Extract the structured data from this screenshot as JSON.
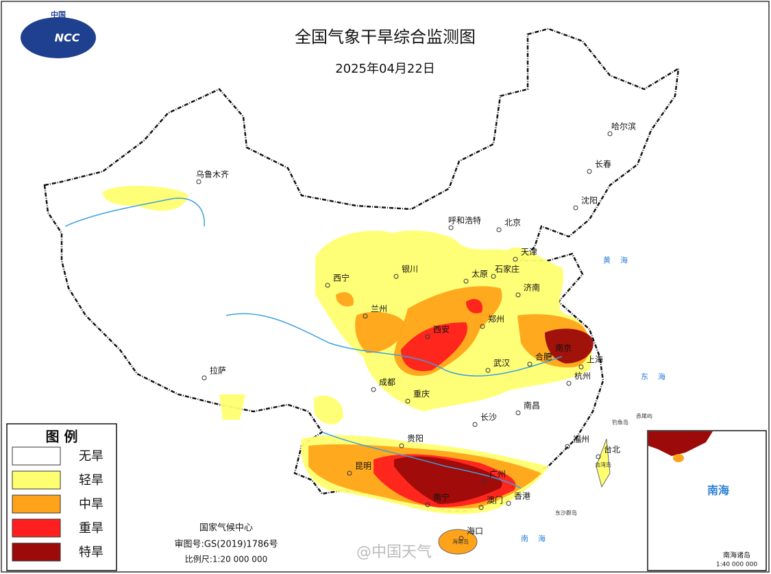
{
  "header": {
    "logo_text": "中国",
    "logo_mark": "NCC",
    "title": "全国气象干旱综合监测图",
    "date": "2025年04月22日"
  },
  "legend": {
    "title": "图 例",
    "items": [
      {
        "label": "无旱",
        "color": "#ffffff"
      },
      {
        "label": "轻旱",
        "color": "#ffff70"
      },
      {
        "label": "中旱",
        "color": "#ffa41a"
      },
      {
        "label": "重旱",
        "color": "#ff1f1f"
      },
      {
        "label": "特旱",
        "color": "#9c0a0a"
      }
    ]
  },
  "map_labels": {
    "cities": [
      "乌鲁木齐",
      "哈尔滨",
      "长春",
      "沈阳",
      "呼和浩特",
      "北京",
      "天津",
      "银川",
      "太原",
      "石家庄",
      "西宁",
      "兰州",
      "济南",
      "郑州",
      "西安",
      "南京",
      "合肥",
      "上海",
      "武汉",
      "杭州",
      "成都",
      "重庆",
      "拉萨",
      "长沙",
      "南昌",
      "贵阳",
      "福州",
      "台北",
      "昆明",
      "广州",
      "南宁",
      "香港",
      "澳门",
      "海口"
    ],
    "islands": [
      "台湾岛",
      "海南岛",
      "东沙群岛",
      "钓鱼岛",
      "赤尾屿"
    ],
    "seas": [
      "黄海",
      "东海",
      "南海"
    ]
  },
  "footer": {
    "agency": "国家气候中心",
    "approval": "审图号:GS(2019)1786号",
    "scale": "比例尺:1:20 000 000"
  },
  "inset": {
    "sea": "南海",
    "title": "南海诸岛",
    "scale": "1:40 000 000"
  },
  "watermark": "@中国天气"
}
